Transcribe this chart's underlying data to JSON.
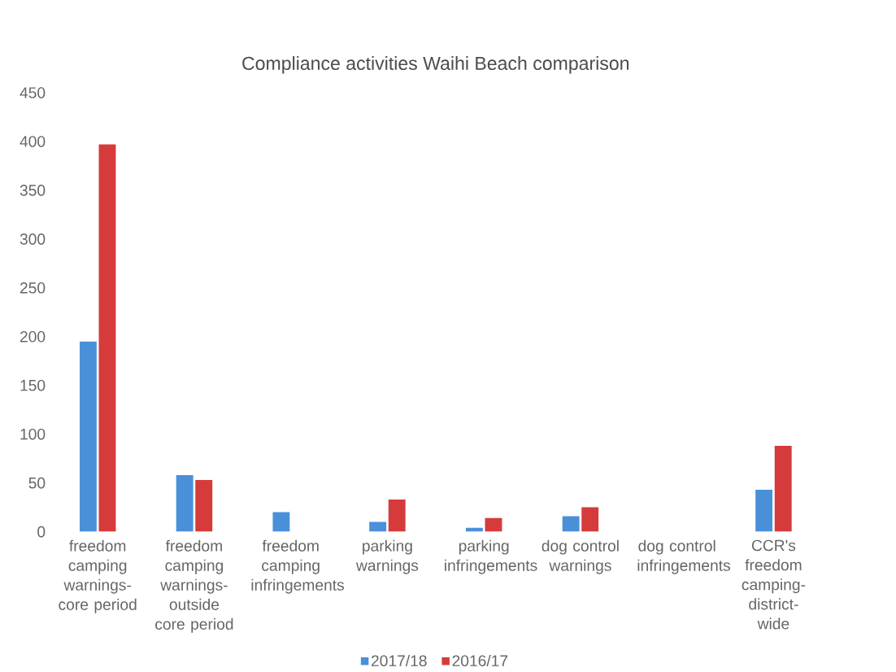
{
  "chart_data": {
    "type": "bar",
    "title": "Compliance activities Waihi Beach comparison",
    "categories": [
      "freedom camping warnings- core period",
      "freedom camping warnings- outside core period",
      "freedom camping infringements",
      "parking warnings",
      "parking infringements",
      "dog control warnings",
      "dog control infringements",
      "CCR's freedom camping- district-wide"
    ],
    "series": [
      {
        "name": "2017/18",
        "color": "#4a90d9",
        "values": [
          195,
          58,
          20,
          10,
          4,
          16,
          0,
          43
        ]
      },
      {
        "name": "2016/17",
        "color": "#d63b3b",
        "values": [
          397,
          53,
          null,
          33,
          14,
          25,
          0,
          88
        ]
      }
    ],
    "ylim": [
      0,
      450
    ],
    "yticks": [
      0,
      50,
      100,
      150,
      200,
      250,
      300,
      350,
      400,
      450
    ],
    "grid": false,
    "legend": "bottom"
  }
}
